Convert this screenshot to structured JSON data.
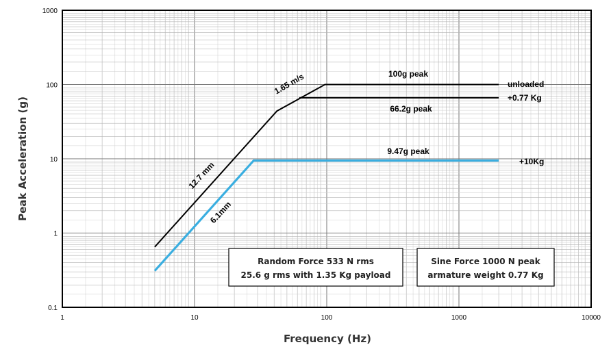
{
  "chart_data": {
    "type": "line",
    "xscale": "log",
    "yscale": "log",
    "xlim": [
      1,
      10000
    ],
    "ylim": [
      0.1,
      1000
    ],
    "grid": true,
    "xlabel": "Frequency (Hz)",
    "ylabel": "Peak Acceleration (g)",
    "x_ticks": [
      "1",
      "10",
      "100",
      "1000",
      "10000"
    ],
    "y_ticks": [
      "0.1",
      "1",
      "10",
      "100",
      "1000"
    ],
    "colors": {
      "unloaded": "#000000",
      "loaded_10kg": "#3aaee0"
    },
    "series": [
      {
        "name": "unloaded",
        "x": [
          5,
          42,
          97,
          2000
        ],
        "y": [
          0.65,
          44,
          100,
          100
        ]
      },
      {
        "name": "+0.77 Kg",
        "x": [
          62,
          2000
        ],
        "y": [
          66.2,
          66.2
        ]
      },
      {
        "name": "+10Kg",
        "x": [
          5,
          28,
          2000
        ],
        "y": [
          0.31,
          9.47,
          9.47
        ]
      }
    ],
    "annotations": {
      "peak_100": "100g peak",
      "unloaded": "unloaded",
      "peak_66": "66.2g peak",
      "payload_077": "+0.77 Kg",
      "peak_947": "9.47g peak",
      "payload_10": "+10Kg",
      "velocity": "1.65 m/s",
      "disp_127": "12.7 mm",
      "disp_61": "6.1mm"
    },
    "info_boxes": [
      {
        "lines": [
          "Random Force 533 N rms",
          "25.6 g rms with 1.35 Kg payload"
        ]
      },
      {
        "lines": [
          "Sine Force 1000 N peak",
          "armature weight 0.77 Kg"
        ]
      }
    ]
  }
}
